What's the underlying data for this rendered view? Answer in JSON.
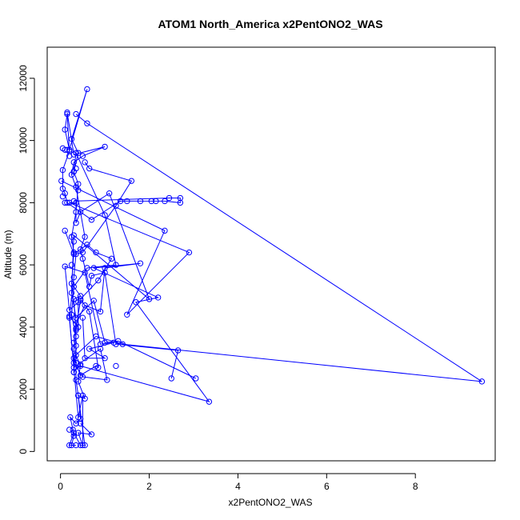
{
  "chart_data": {
    "type": "line",
    "title": "ATOM1 North_America x2PentONO2_WAS",
    "xlabel": "x2PentONO2_WAS",
    "ylabel": "Altitude (m)",
    "xlim": [
      -0.3,
      9.8
    ],
    "ylim": [
      -300,
      13000
    ],
    "x_ticks": [
      0,
      2,
      4,
      6,
      8
    ],
    "y_ticks": [
      0,
      2000,
      4000,
      6000,
      8000,
      10000,
      12000
    ],
    "series_color": "#0000ff",
    "marker": "open-circle",
    "grid": false,
    "legend": "none",
    "series": [
      {
        "points": [
          [
            0.25,
            200
          ],
          [
            0.3,
            500
          ],
          [
            0.28,
            700
          ],
          [
            0.22,
            1100
          ],
          [
            0.35,
            900
          ],
          [
            0.45,
            1050
          ],
          [
            0.4,
            1800
          ],
          [
            0.55,
            1700
          ],
          [
            0.4,
            2250
          ],
          [
            0.45,
            2800
          ],
          [
            0.3,
            2550
          ],
          [
            0.35,
            3400
          ],
          [
            0.35,
            3900
          ],
          [
            0.3,
            4900
          ],
          [
            0.45,
            5000
          ],
          [
            0.25,
            5400
          ],
          [
            0.3,
            6400
          ],
          [
            0.25,
            6900
          ],
          [
            0.35,
            7700
          ],
          [
            0.4,
            8600
          ],
          [
            0.3,
            9000
          ],
          [
            0.4,
            9600
          ],
          [
            0.25,
            10050
          ],
          [
            0.6,
            11650
          ],
          [
            0.2,
            9700
          ],
          [
            0.1,
            10350
          ],
          [
            0.15,
            10850
          ],
          [
            0.2,
            9650
          ],
          [
            0.05,
            9050
          ],
          [
            0.05,
            8450
          ],
          [
            0.1,
            8300
          ],
          [
            0.15,
            8000
          ],
          [
            0.7,
            7450
          ],
          [
            1.35,
            8050
          ],
          [
            1.8,
            8050
          ],
          [
            2.35,
            8050
          ],
          [
            2.7,
            8000
          ],
          [
            2.7,
            8150
          ],
          [
            2.45,
            8150
          ],
          [
            0.3,
            8050
          ]
        ]
      },
      {
        "points": [
          [
            0.35,
            10850
          ],
          [
            0.6,
            10550
          ],
          [
            9.5,
            2250
          ],
          [
            1.4,
            3450
          ],
          [
            0.8,
            3700
          ],
          [
            0.35,
            3100
          ],
          [
            0.45,
            2750
          ],
          [
            3.35,
            1600
          ],
          [
            1.7,
            4800
          ],
          [
            2.2,
            4950
          ],
          [
            0.75,
            5900
          ],
          [
            1.8,
            6050
          ],
          [
            1.0,
            5900
          ],
          [
            0.9,
            4500
          ],
          [
            0.55,
            4700
          ],
          [
            0.35,
            4100
          ],
          [
            0.3,
            3500
          ]
        ]
      },
      {
        "points": [
          [
            0.1,
            7100
          ],
          [
            0.3,
            6350
          ],
          [
            0.6,
            6650
          ],
          [
            0.8,
            6400
          ],
          [
            1.15,
            6200
          ],
          [
            0.85,
            5500
          ],
          [
            0.45,
            4900
          ],
          [
            0.65,
            4500
          ],
          [
            0.85,
            2700
          ],
          [
            0.8,
            2750
          ],
          [
            0.45,
            2450
          ],
          [
            0.3,
            3000
          ]
        ]
      },
      {
        "points": [
          [
            0.02,
            8700
          ],
          [
            2.35,
            7100
          ],
          [
            1.5,
            4400
          ],
          [
            2.9,
            6400
          ],
          [
            0.2,
            8000
          ],
          [
            0.35,
            8000
          ],
          [
            0.35,
            7350
          ],
          [
            0.45,
            7700
          ],
          [
            1.1,
            8300
          ],
          [
            2.0,
            4900
          ],
          [
            0.3,
            6950
          ],
          [
            0.25,
            5100
          ],
          [
            0.35,
            4300
          ],
          [
            0.75,
            4850
          ],
          [
            1.0,
            3500
          ],
          [
            1.3,
            3550
          ],
          [
            3.05,
            2350
          ]
        ]
      },
      {
        "points": [
          [
            0.5,
            4300
          ],
          [
            0.55,
            3000
          ],
          [
            1.0,
            3000
          ],
          [
            0.65,
            3300
          ],
          [
            1.2,
            3500
          ],
          [
            0.9,
            3450
          ],
          [
            0.55,
            5750
          ],
          [
            0.1,
            5950
          ],
          [
            0.2,
            4550
          ],
          [
            0.4,
            4800
          ],
          [
            0.4,
            4000
          ],
          [
            0.2,
            4350
          ],
          [
            0.3,
            2700
          ],
          [
            0.9,
            3300
          ],
          [
            1.05,
            2300
          ],
          [
            0.5,
            2400
          ],
          [
            0.3,
            2850
          ]
        ]
      },
      {
        "points": [
          [
            0.15,
            10900
          ],
          [
            0.3,
            9550
          ],
          [
            1.0,
            9800
          ],
          [
            0.5,
            9500
          ],
          [
            0.3,
            9300
          ],
          [
            0.25,
            8900
          ],
          [
            0.35,
            8500
          ],
          [
            0.55,
            6900
          ],
          [
            0.45,
            6500
          ],
          [
            0.5,
            6200
          ],
          [
            0.65,
            5300
          ],
          [
            0.7,
            5650
          ],
          [
            1.0,
            5750
          ],
          [
            1.25,
            3450
          ],
          [
            2.65,
            3250
          ],
          [
            2.5,
            2350
          ]
        ]
      },
      {
        "points": [
          [
            0.55,
            9300
          ],
          [
            0.65,
            9100
          ],
          [
            1.6,
            8700
          ],
          [
            1.25,
            7900
          ],
          [
            0.5,
            6400
          ],
          [
            0.35,
            6350
          ],
          [
            0.3,
            5600
          ],
          [
            0.2,
            4300
          ],
          [
            0.4,
            1100
          ],
          [
            0.5,
            1800
          ],
          [
            0.5,
            200
          ],
          [
            0.4,
            600
          ],
          [
            0.7,
            550
          ],
          [
            0.45,
            900
          ]
        ]
      },
      {
        "points": [
          [
            0.35,
            200
          ],
          [
            0.2,
            200
          ],
          [
            0.3,
            600
          ],
          [
            0.45,
            200
          ],
          [
            0.55,
            200
          ],
          [
            0.4,
            1800
          ],
          [
            0.35,
            2300
          ],
          [
            0.35,
            2850
          ],
          [
            0.35,
            3950
          ],
          [
            0.45,
            4850
          ]
        ]
      },
      {
        "points": [
          [
            0.3,
            9000
          ],
          [
            0.35,
            9600
          ],
          [
            1.0,
            7600
          ],
          [
            1.25,
            6000
          ],
          [
            0.6,
            5900
          ],
          [
            0.3,
            5300
          ],
          [
            0.25,
            4400
          ],
          [
            0.35,
            3700
          ],
          [
            0.3,
            3300
          ],
          [
            0.3,
            2550
          ]
        ]
      }
    ],
    "isolated_points": [
      [
        0.05,
        9750
      ],
      [
        0.1,
        9700
      ],
      [
        0.15,
        9700
      ],
      [
        0.2,
        9500
      ],
      [
        0.35,
        9100
      ],
      [
        0.4,
        8400
      ],
      [
        0.05,
        8200
      ],
      [
        0.1,
        8000
      ],
      [
        0.3,
        6750
      ],
      [
        0.25,
        6000
      ],
      [
        1.5,
        8050
      ],
      [
        2.05,
        8050
      ],
      [
        2.15,
        8050
      ],
      [
        1.25,
        2750
      ],
      [
        0.2,
        700
      ]
    ]
  }
}
